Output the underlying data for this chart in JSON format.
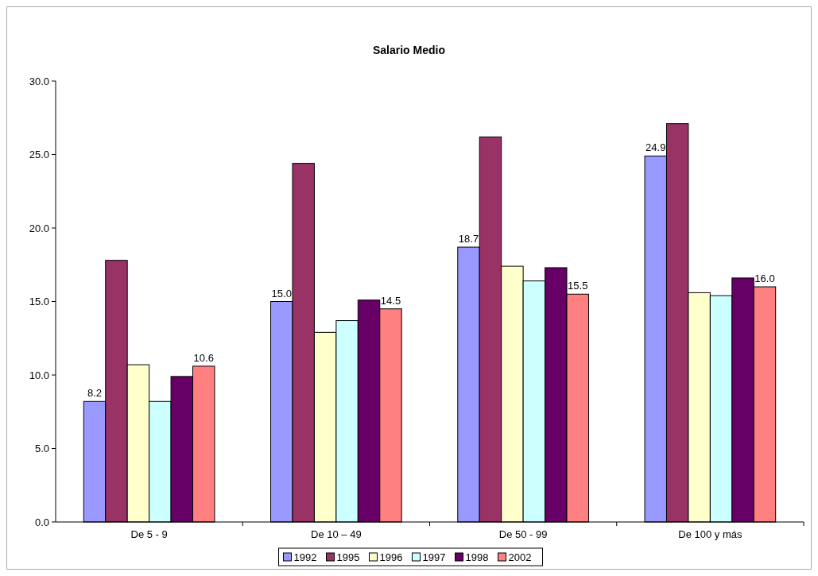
{
  "chart_data": {
    "type": "bar",
    "title": "Salario Medio",
    "categories": [
      "De 5 - 9",
      "De 10 – 49",
      "De 50 - 99",
      "De 100 y más"
    ],
    "series": [
      {
        "name": "1992",
        "color": "#9999ff",
        "values": [
          8.2,
          15.0,
          18.7,
          24.9
        ],
        "value_labels": [
          "8.2",
          "15.0",
          "18.7",
          "24.9"
        ]
      },
      {
        "name": "1995",
        "color": "#993366",
        "values": [
          17.8,
          24.4,
          26.2,
          27.1
        ]
      },
      {
        "name": "1996",
        "color": "#ffffcc",
        "values": [
          10.7,
          12.9,
          17.4,
          15.6
        ]
      },
      {
        "name": "1997",
        "color": "#ccffff",
        "values": [
          8.2,
          13.7,
          16.4,
          15.4
        ]
      },
      {
        "name": "1998",
        "color": "#660066",
        "values": [
          9.9,
          15.1,
          17.3,
          16.6
        ]
      },
      {
        "name": "2002",
        "color": "#ff8080",
        "values": [
          10.6,
          14.5,
          15.5,
          16.0
        ],
        "value_labels": [
          "10.6",
          "14.5",
          "15.5",
          "16.0"
        ]
      }
    ],
    "ylim": [
      0,
      30
    ],
    "yticks": [
      {
        "value": 0,
        "label": "0.0"
      },
      {
        "value": 5,
        "label": "5.0"
      },
      {
        "value": 10,
        "label": "10.0"
      },
      {
        "value": 15,
        "label": "15.0"
      },
      {
        "value": 20,
        "label": "20.0"
      },
      {
        "value": 25,
        "label": "25.0"
      },
      {
        "value": 30,
        "label": "30.0"
      }
    ],
    "grid": false,
    "legend": "bottom"
  }
}
